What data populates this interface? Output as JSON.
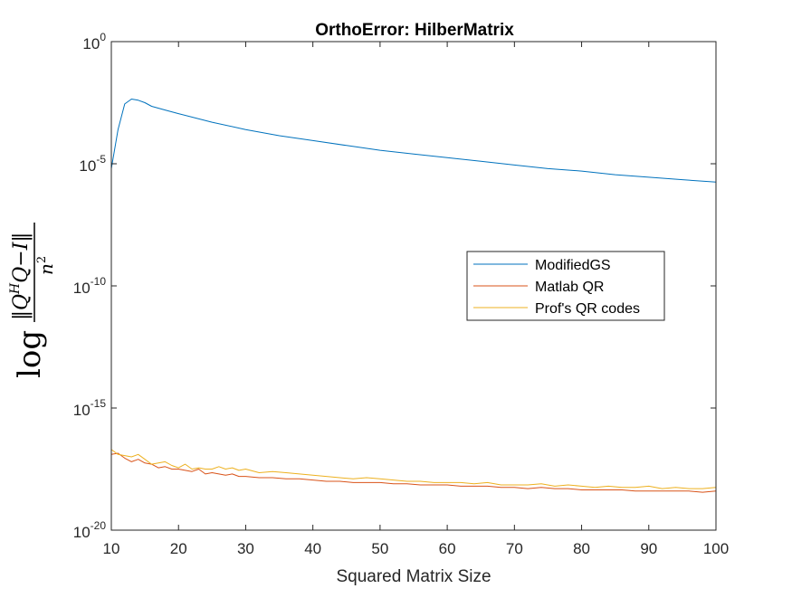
{
  "chart_data": {
    "type": "line",
    "title": "OrthoError: HilberMatrix",
    "xlabel": "Squared Matrix Size",
    "ylabel": {
      "log": "log",
      "numerator": "‖Q",
      "numerator_sup": "H",
      "numerator_rest": "Q−I‖",
      "denominator": "n",
      "denominator_sup": "2"
    },
    "xlim": [
      10,
      100
    ],
    "ylim_exponent": [
      -20,
      0
    ],
    "yscale": "log",
    "grid": false,
    "legend_position": "center-right",
    "x_ticks": [
      "10",
      "20",
      "30",
      "40",
      "50",
      "60",
      "70",
      "80",
      "90",
      "100"
    ],
    "x_tick_values": [
      10,
      20,
      30,
      40,
      50,
      60,
      70,
      80,
      90,
      100
    ],
    "y_ticks": [
      {
        "exponent": -20,
        "base": "10",
        "sup": "-20"
      },
      {
        "exponent": -15,
        "base": "10",
        "sup": "-15"
      },
      {
        "exponent": -10,
        "base": "10",
        "sup": "-10"
      },
      {
        "exponent": -5,
        "base": "10",
        "sup": "-5"
      },
      {
        "exponent": 0,
        "base": "10",
        "sup": "0"
      }
    ],
    "series": [
      {
        "name": "ModifiedGS",
        "color": "#0072BD",
        "x": [
          10,
          11,
          12,
          13,
          14,
          15,
          16,
          18,
          20,
          25,
          30,
          35,
          40,
          45,
          50,
          55,
          60,
          65,
          70,
          75,
          80,
          85,
          90,
          95,
          100
        ],
        "log10_y": [
          -5.2,
          -3.6,
          -2.55,
          -2.35,
          -2.4,
          -2.5,
          -2.65,
          -2.8,
          -2.95,
          -3.3,
          -3.6,
          -3.85,
          -4.05,
          -4.25,
          -4.45,
          -4.6,
          -4.75,
          -4.9,
          -5.05,
          -5.2,
          -5.3,
          -5.45,
          -5.55,
          -5.65,
          -5.75
        ]
      },
      {
        "name": "Matlab QR",
        "color": "#D95319",
        "x": [
          10,
          11,
          12,
          13,
          14,
          15,
          16,
          17,
          18,
          19,
          20,
          21,
          22,
          23,
          24,
          25,
          26,
          27,
          28,
          29,
          30,
          32,
          34,
          36,
          38,
          40,
          42,
          44,
          46,
          48,
          50,
          52,
          54,
          56,
          58,
          60,
          62,
          64,
          66,
          68,
          70,
          72,
          74,
          76,
          78,
          80,
          82,
          84,
          86,
          88,
          90,
          92,
          94,
          96,
          98,
          100
        ],
        "log10_y": [
          -16.9,
          -16.85,
          -17.05,
          -17.2,
          -17.1,
          -17.25,
          -17.3,
          -17.45,
          -17.4,
          -17.5,
          -17.5,
          -17.55,
          -17.6,
          -17.5,
          -17.7,
          -17.65,
          -17.7,
          -17.75,
          -17.7,
          -17.8,
          -17.8,
          -17.85,
          -17.85,
          -17.9,
          -17.9,
          -17.95,
          -18.0,
          -18.0,
          -18.05,
          -18.05,
          -18.05,
          -18.1,
          -18.1,
          -18.15,
          -18.15,
          -18.15,
          -18.2,
          -18.2,
          -18.2,
          -18.25,
          -18.25,
          -18.3,
          -18.25,
          -18.3,
          -18.3,
          -18.35,
          -18.35,
          -18.35,
          -18.35,
          -18.4,
          -18.4,
          -18.4,
          -18.4,
          -18.4,
          -18.45,
          -18.4
        ]
      },
      {
        "name": "Prof's QR codes",
        "color": "#EDB120",
        "x": [
          10,
          11,
          12,
          13,
          14,
          15,
          16,
          17,
          18,
          19,
          20,
          21,
          22,
          23,
          24,
          25,
          26,
          27,
          28,
          29,
          30,
          32,
          34,
          36,
          38,
          40,
          42,
          44,
          46,
          48,
          50,
          52,
          54,
          56,
          58,
          60,
          62,
          64,
          66,
          68,
          70,
          72,
          74,
          76,
          78,
          80,
          82,
          84,
          86,
          88,
          90,
          92,
          94,
          96,
          98,
          100
        ],
        "log10_y": [
          -16.7,
          -16.9,
          -16.95,
          -17.0,
          -16.9,
          -17.1,
          -17.3,
          -17.25,
          -17.2,
          -17.35,
          -17.45,
          -17.3,
          -17.5,
          -17.45,
          -17.5,
          -17.5,
          -17.4,
          -17.5,
          -17.45,
          -17.55,
          -17.5,
          -17.65,
          -17.6,
          -17.65,
          -17.7,
          -17.75,
          -17.8,
          -17.85,
          -17.9,
          -17.85,
          -17.9,
          -17.95,
          -18.0,
          -18.0,
          -18.05,
          -18.05,
          -18.05,
          -18.1,
          -18.05,
          -18.15,
          -18.15,
          -18.15,
          -18.1,
          -18.2,
          -18.15,
          -18.2,
          -18.25,
          -18.2,
          -18.25,
          -18.25,
          -18.2,
          -18.3,
          -18.25,
          -18.3,
          -18.3,
          -18.25
        ]
      }
    ]
  }
}
